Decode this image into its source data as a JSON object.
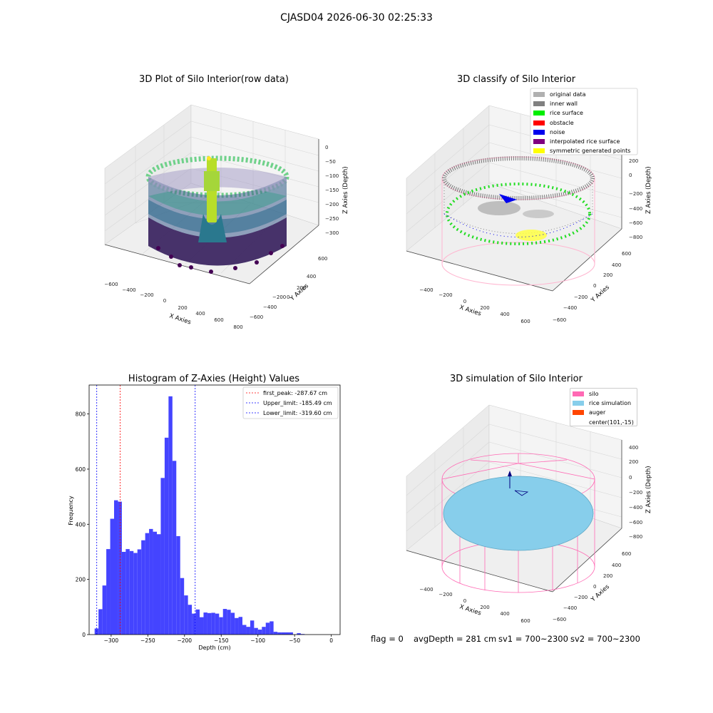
{
  "figure": {
    "title": "CJASD04 2026-06-30 02:25:33"
  },
  "panels": {
    "raw": {
      "title": "3D Plot of Silo Interior(row data)",
      "xlabel": "X Axies",
      "ylabel": "Y Axies",
      "zlabel": "Z Axies (Depth)",
      "xticks": [
        "−600",
        "−400",
        "−200",
        "0",
        "200",
        "400",
        "600",
        "800"
      ],
      "yticks": [
        "600",
        "400",
        "200",
        "0",
        "−200",
        "−400",
        "−600"
      ],
      "zticks": [
        "0",
        "−50",
        "−100",
        "−150",
        "−200",
        "−250",
        "−300"
      ]
    },
    "classify": {
      "title": "3D classify of Silo Interior",
      "xlabel": "X Axies",
      "ylabel": "Y Axies",
      "zlabel": "Z Axies (Depth)",
      "xticks": [
        "−400",
        "−200",
        "0",
        "200",
        "400",
        "600"
      ],
      "yticks": [
        "600",
        "400",
        "200",
        "0",
        "−200",
        "−400",
        "−600"
      ],
      "zticks": [
        "200",
        "0",
        "−200",
        "−400",
        "−600",
        "−800"
      ],
      "legend": [
        {
          "label": "original data",
          "color": "#b0b0b0"
        },
        {
          "label": "inner wall",
          "color": "#808080"
        },
        {
          "label": "rice surface",
          "color": "#00ee00"
        },
        {
          "label": "obstacle",
          "color": "#ff0000"
        },
        {
          "label": "noise",
          "color": "#0000ee"
        },
        {
          "label": "interpolated rice surface",
          "color": "#800080"
        },
        {
          "label": "symmetric generated points",
          "color": "#ffff00"
        }
      ]
    },
    "simulation": {
      "title": "3D simulation of Silo Interior",
      "xlabel": "X Axies",
      "ylabel": "Y Axies",
      "zlabel": "Z Axies (Depth)",
      "xticks": [
        "−400",
        "−200",
        "0",
        "200",
        "400",
        "600"
      ],
      "yticks": [
        "600",
        "400",
        "200",
        "0",
        "−200",
        "−400",
        "−600"
      ],
      "zticks": [
        "400",
        "200",
        "0",
        "−200",
        "−400",
        "−600",
        "−800"
      ],
      "legend": [
        {
          "label": "silo",
          "color": "#ff69b4"
        },
        {
          "label": "rice simulation",
          "color": "#87ceeb"
        },
        {
          "label": "auger",
          "color": "#ff4500"
        },
        {
          "label": "center(101,-15)",
          "color": "none"
        }
      ]
    }
  },
  "chart_data": {
    "type": "bar",
    "title": "Histogram of Z-Axies (Height) Values",
    "xlabel": "Depth (cm)",
    "ylabel": "Frequency",
    "xlim": [
      -330,
      12
    ],
    "ylim": [
      0,
      905
    ],
    "xticks": [
      -300,
      -250,
      -200,
      -150,
      -100,
      -50,
      0
    ],
    "yticks": [
      0,
      200,
      400,
      600,
      800
    ],
    "bin_width": 5.3,
    "bin_start": -322.5,
    "values": [
      22,
      92,
      178,
      310,
      420,
      487,
      482,
      300,
      310,
      303,
      296,
      309,
      342,
      368,
      383,
      373,
      364,
      568,
      714,
      864,
      630,
      357,
      205,
      142,
      108,
      76,
      91,
      63,
      80,
      78,
      79,
      76,
      63,
      93,
      90,
      79,
      60,
      64,
      35,
      28,
      51,
      24,
      18,
      28,
      43,
      48,
      10,
      8,
      8,
      8,
      8,
      0,
      5,
      2
    ],
    "bar_color": "#4444ff",
    "lines": [
      {
        "label": "first_peak: -287.67 cm",
        "x": -287.67,
        "color": "#ff0000"
      },
      {
        "label": "Upper_limit: -185.49 cm",
        "x": -185.49,
        "color": "#0000ff"
      },
      {
        "label": "Lower_limit: -319.60 cm",
        "x": -319.6,
        "color": "#0000ff"
      }
    ],
    "legend_position": "upper right"
  },
  "footer": {
    "flag": "flag = 0",
    "avg": "avgDepth = 281 cm",
    "sv1": "sv1 = 700~2300",
    "sv2": "sv2 = 700~2300"
  }
}
